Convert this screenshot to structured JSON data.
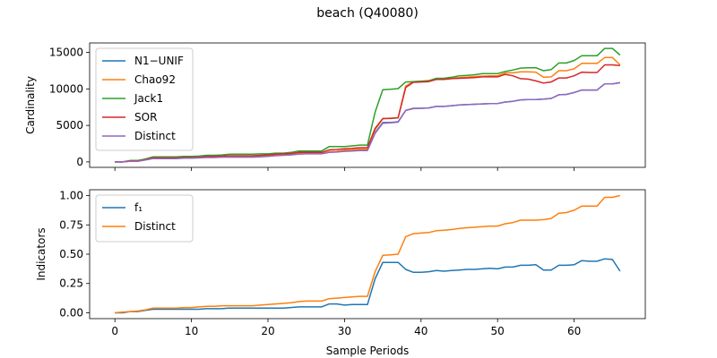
{
  "figure": {
    "title": "beach (Q40080)",
    "xlabel": "Sample Periods"
  },
  "chart_data": [
    {
      "type": "line",
      "ylabel": "Cardinality",
      "xlim": [
        -3.3,
        69.3
      ],
      "ylim": [
        -750,
        16300
      ],
      "xticks": [
        0,
        10,
        20,
        30,
        40,
        50,
        60
      ],
      "yticks": [
        0,
        5000,
        10000,
        15000
      ],
      "ytick_labels": [
        "0",
        "5000",
        "10000",
        "15000"
      ],
      "show_xtick_labels": false,
      "legend": "top-left",
      "series": [
        {
          "name": "N1−UNIF",
          "color": "#1f77b4",
          "values": [
            0,
            0,
            100,
            100,
            300,
            500,
            500,
            500,
            500,
            550,
            550,
            600,
            650,
            650,
            700,
            700,
            700,
            700,
            700,
            750,
            800,
            900,
            950,
            1000,
            1100,
            1150,
            1150,
            1150,
            1400,
            1450,
            1550,
            1600,
            1650,
            1650,
            4000,
            5400,
            5400,
            5500,
            7050,
            7350,
            7350,
            7400,
            7600,
            7600,
            7700,
            7800,
            7850,
            7900,
            7950,
            8000,
            8000,
            8200,
            8300,
            8500,
            8550,
            8550,
            8600,
            8700,
            9200,
            9250,
            9500,
            9850,
            9850,
            9850,
            10700,
            10700,
            10850
          ]
        },
        {
          "name": "Chao92",
          "color": "#ff7f0e",
          "values": [
            0,
            0,
            100,
            100,
            300,
            500,
            500,
            500,
            500,
            550,
            550,
            600,
            650,
            650,
            700,
            700,
            700,
            700,
            700,
            750,
            800,
            900,
            950,
            1000,
            1100,
            1150,
            1150,
            1150,
            1400,
            1450,
            1600,
            1650,
            1750,
            1750,
            4400,
            5900,
            6000,
            6050,
            10400,
            11000,
            11050,
            11150,
            11400,
            11400,
            11500,
            11550,
            11600,
            11700,
            11750,
            11800,
            11800,
            12200,
            12200,
            12350,
            12350,
            12300,
            11600,
            11650,
            12500,
            12500,
            12750,
            13500,
            13500,
            13500,
            14300,
            14300,
            13300
          ]
        },
        {
          "name": "Jack1",
          "color": "#2ca02c",
          "values": [
            0,
            0,
            200,
            200,
            400,
            700,
            700,
            700,
            700,
            750,
            750,
            800,
            900,
            900,
            950,
            1050,
            1050,
            1050,
            1050,
            1100,
            1100,
            1200,
            1200,
            1300,
            1500,
            1500,
            1500,
            1500,
            2100,
            2100,
            2100,
            2200,
            2300,
            2300,
            6800,
            9900,
            9950,
            10050,
            10950,
            11000,
            11050,
            11100,
            11450,
            11450,
            11600,
            11800,
            11850,
            11950,
            12100,
            12100,
            12100,
            12400,
            12600,
            12850,
            12900,
            12900,
            12500,
            12650,
            13550,
            13550,
            13900,
            14550,
            14550,
            14550,
            15550,
            15550,
            14650
          ]
        },
        {
          "name": "SOR",
          "color": "#d62728",
          "values": [
            0,
            0,
            150,
            150,
            300,
            550,
            550,
            550,
            550,
            600,
            600,
            650,
            750,
            750,
            800,
            850,
            850,
            850,
            850,
            900,
            950,
            1050,
            1100,
            1150,
            1300,
            1300,
            1300,
            1300,
            1650,
            1700,
            1800,
            1850,
            1950,
            1950,
            4600,
            5950,
            5950,
            6050,
            10200,
            10900,
            10950,
            11000,
            11300,
            11300,
            11400,
            11450,
            11500,
            11550,
            11650,
            11650,
            11650,
            12000,
            11800,
            11400,
            11350,
            11100,
            10800,
            10950,
            11500,
            11500,
            11800,
            12300,
            12250,
            12250,
            13300,
            13300,
            13200
          ]
        },
        {
          "name": "Distinct",
          "color": "#9467bd",
          "values": [
            0,
            0,
            100,
            100,
            250,
            450,
            450,
            450,
            450,
            500,
            500,
            550,
            600,
            600,
            650,
            650,
            650,
            650,
            650,
            700,
            750,
            850,
            900,
            950,
            1050,
            1100,
            1100,
            1100,
            1300,
            1350,
            1450,
            1500,
            1550,
            1550,
            3900,
            5300,
            5350,
            5450,
            7050,
            7300,
            7350,
            7400,
            7600,
            7600,
            7700,
            7800,
            7850,
            7900,
            7950,
            8000,
            8000,
            8200,
            8300,
            8500,
            8550,
            8550,
            8600,
            8700,
            9200,
            9250,
            9500,
            9850,
            9850,
            9850,
            10700,
            10700,
            10850
          ]
        }
      ]
    },
    {
      "type": "line",
      "ylabel": "Indicators",
      "xlim": [
        -3.3,
        69.3
      ],
      "ylim": [
        -0.05,
        1.05
      ],
      "xticks": [
        0,
        10,
        20,
        30,
        40,
        50,
        60
      ],
      "xtick_labels": [
        "0",
        "10",
        "20",
        "30",
        "40",
        "50",
        "60"
      ],
      "yticks": [
        0,
        0.25,
        0.5,
        0.75,
        1.0
      ],
      "ytick_labels": [
        "0.00",
        "0.25",
        "0.50",
        "0.75",
        "1.00"
      ],
      "legend": "top-left",
      "series": [
        {
          "name": "f₁",
          "color": "#1f77b4",
          "values": [
            0,
            0,
            0.01,
            0.01,
            0.02,
            0.03,
            0.03,
            0.03,
            0.03,
            0.03,
            0.03,
            0.03,
            0.035,
            0.035,
            0.035,
            0.04,
            0.04,
            0.04,
            0.04,
            0.04,
            0.04,
            0.04,
            0.04,
            0.045,
            0.05,
            0.05,
            0.05,
            0.05,
            0.075,
            0.075,
            0.065,
            0.07,
            0.07,
            0.07,
            0.29,
            0.43,
            0.43,
            0.43,
            0.37,
            0.345,
            0.345,
            0.35,
            0.36,
            0.355,
            0.36,
            0.365,
            0.37,
            0.37,
            0.375,
            0.38,
            0.375,
            0.39,
            0.39,
            0.405,
            0.405,
            0.41,
            0.365,
            0.365,
            0.405,
            0.405,
            0.41,
            0.445,
            0.44,
            0.44,
            0.46,
            0.455,
            0.355
          ]
        },
        {
          "name": "Distinct",
          "color": "#ff7f0e",
          "values": [
            0,
            0.005,
            0.01,
            0.015,
            0.025,
            0.04,
            0.04,
            0.04,
            0.04,
            0.045,
            0.045,
            0.05,
            0.055,
            0.055,
            0.06,
            0.06,
            0.06,
            0.06,
            0.06,
            0.065,
            0.07,
            0.075,
            0.08,
            0.085,
            0.095,
            0.1,
            0.1,
            0.1,
            0.12,
            0.125,
            0.13,
            0.135,
            0.14,
            0.14,
            0.35,
            0.49,
            0.495,
            0.5,
            0.65,
            0.675,
            0.68,
            0.685,
            0.7,
            0.705,
            0.71,
            0.72,
            0.725,
            0.73,
            0.735,
            0.74,
            0.74,
            0.76,
            0.77,
            0.79,
            0.79,
            0.79,
            0.795,
            0.805,
            0.85,
            0.855,
            0.875,
            0.91,
            0.91,
            0.91,
            0.985,
            0.985,
            1.0
          ]
        }
      ]
    }
  ]
}
